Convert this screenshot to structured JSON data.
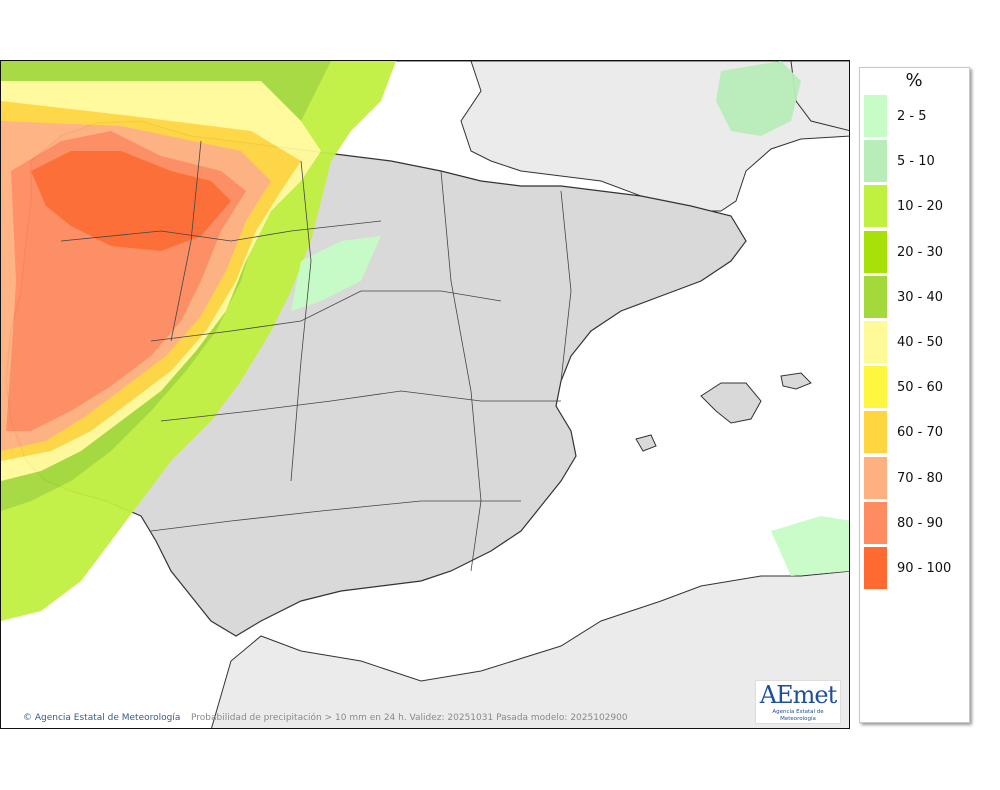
{
  "legend": {
    "unit": "%",
    "items": [
      {
        "label": "2 - 5",
        "color": "#c6fcc6"
      },
      {
        "label": "5 - 10",
        "color": "#b8ecb8"
      },
      {
        "label": "10 - 20",
        "color": "#c0f040"
      },
      {
        "label": "20 - 30",
        "color": "#a8e00a"
      },
      {
        "label": "30 - 40",
        "color": "#a3d93a"
      },
      {
        "label": "40 - 50",
        "color": "#fffa98"
      },
      {
        "label": "50 - 60",
        "color": "#fff640"
      },
      {
        "label": "60 - 70",
        "color": "#ffd640"
      },
      {
        "label": "70 - 80",
        "color": "#ffb080"
      },
      {
        "label": "80 - 90",
        "color": "#ff8c60"
      },
      {
        "label": "90 - 100",
        "color": "#ff6a30"
      }
    ]
  },
  "map": {
    "copyright": "Agencia Estatal de Meteorología",
    "caption": "Probabilidad de precipitación > 10 mm en 24 h. Validez: 20251031 Pasada modelo: 2025102900",
    "logo": {
      "word": "AEmet",
      "subtitle": "Agencia Estatal de Meteorología"
    },
    "land_color": "#d9d9d9",
    "foreign_land_color": "#ebebeb",
    "sea_color": "#ffffff"
  }
}
